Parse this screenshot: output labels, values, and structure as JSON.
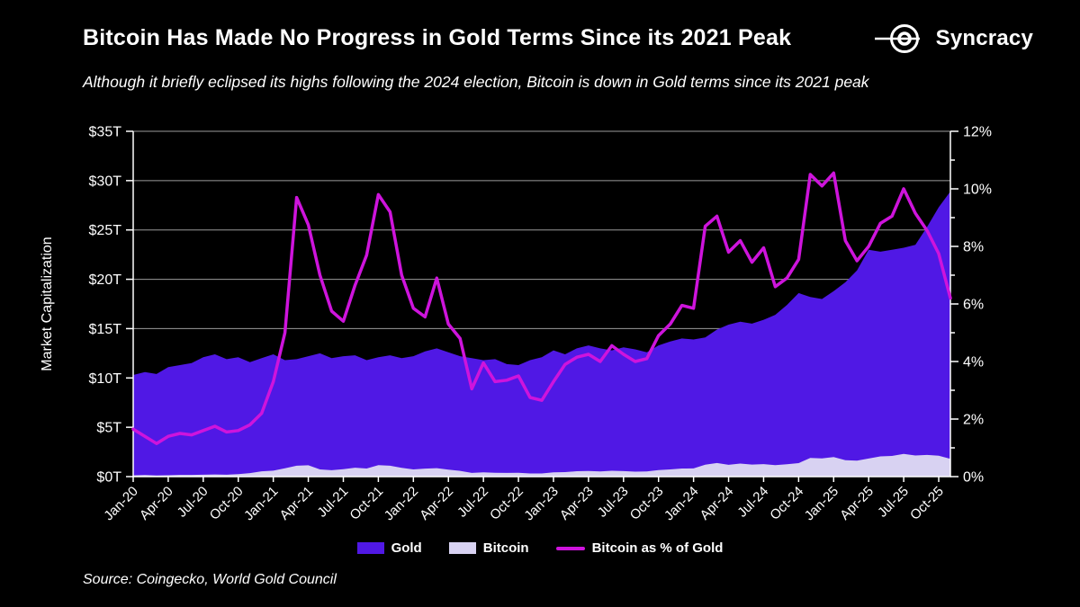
{
  "header": {
    "title": "Bitcoin Has Made No Progress in Gold Terms Since its 2021 Peak",
    "subtitle": "Although it briefly eclipsed its highs following the 2024 election, Bitcoin is down in Gold terms since its 2021 peak",
    "brand": "Syncracy"
  },
  "footer": {
    "source": "Source: Coingecko, World Gold Council"
  },
  "colors": {
    "background": "#000000",
    "gold_area": "#5018E5",
    "bitcoin_area": "#D8D2F2",
    "pct_line": "#CE14DC",
    "gridline": "#9B9B9B",
    "axis": "#FFFFFF",
    "text": "#FFFFFF"
  },
  "legend": {
    "items": [
      {
        "label": "Gold",
        "swatch": "area",
        "color_key": "gold_area"
      },
      {
        "label": "Bitcoin",
        "swatch": "area",
        "color_key": "bitcoin_area"
      },
      {
        "label": "Bitcoin as % of Gold",
        "swatch": "line",
        "color_key": "pct_line"
      }
    ]
  },
  "chart_data": {
    "type": "area",
    "title": "Bitcoin Has Made No Progress in Gold Terms Since its 2021 Peak",
    "x_start": "Jan-20",
    "x_end": "Nov-25",
    "x_frequency": "monthly",
    "x_tick_labels": [
      "Jan-20",
      "Apr-20",
      "Jul-20",
      "Oct-20",
      "Jan-21",
      "Apr-21",
      "Jul-21",
      "Oct-21",
      "Jan-22",
      "Apr-22",
      "Jul-22",
      "Oct-22",
      "Jan-23",
      "Apr-23",
      "Jul-23",
      "Oct-23",
      "Jan-24",
      "Apr-24",
      "Jul-24",
      "Oct-24",
      "Jan-25",
      "Apr-25",
      "Jul-25",
      "Oct-25"
    ],
    "left_axis": {
      "label": "Market Capitalization",
      "tick_labels": [
        "$0T",
        "$5T",
        "$10T",
        "$15T",
        "$20T",
        "$25T",
        "$30T",
        "$35T"
      ],
      "range": [
        0,
        35
      ],
      "unit": "trillion USD"
    },
    "right_axis": {
      "tick_labels": [
        "0%",
        "2%",
        "4%",
        "6%",
        "8%",
        "10%",
        "12%"
      ],
      "range": [
        0,
        12
      ],
      "minor_step": 1
    },
    "grid": "horizontal",
    "legend_position": "bottom",
    "series": [
      {
        "name": "Gold",
        "type": "area",
        "axis": "left",
        "color_key": "gold_area",
        "values": [
          10.3,
          10.6,
          10.4,
          11.1,
          11.3,
          11.5,
          12.1,
          12.4,
          11.9,
          12.1,
          11.6,
          12.0,
          12.4,
          11.8,
          11.9,
          12.2,
          12.5,
          12.0,
          12.2,
          12.3,
          11.8,
          12.1,
          12.3,
          12.0,
          12.2,
          12.7,
          13.0,
          12.6,
          12.2,
          12.0,
          11.8,
          11.9,
          11.4,
          11.3,
          11.8,
          12.1,
          12.8,
          12.4,
          13.0,
          13.3,
          13.0,
          12.8,
          13.1,
          12.9,
          12.6,
          13.3,
          13.7,
          14.0,
          13.9,
          14.1,
          14.9,
          15.4,
          15.7,
          15.5,
          15.9,
          16.4,
          17.4,
          18.6,
          18.2,
          18.0,
          18.8,
          19.7,
          20.9,
          23.0,
          22.8,
          23.0,
          23.2,
          23.5,
          25.3,
          27.3,
          28.9
        ]
      },
      {
        "name": "Bitcoin",
        "type": "area",
        "axis": "left",
        "color_key": "bitcoin_area",
        "values": [
          0.13,
          0.16,
          0.12,
          0.14,
          0.17,
          0.17,
          0.19,
          0.22,
          0.19,
          0.25,
          0.36,
          0.54,
          0.6,
          0.85,
          1.1,
          1.15,
          0.73,
          0.65,
          0.76,
          0.9,
          0.82,
          1.16,
          1.1,
          0.88,
          0.73,
          0.81,
          0.86,
          0.7,
          0.58,
          0.37,
          0.44,
          0.39,
          0.37,
          0.39,
          0.32,
          0.32,
          0.44,
          0.46,
          0.55,
          0.57,
          0.52,
          0.59,
          0.56,
          0.5,
          0.52,
          0.66,
          0.73,
          0.82,
          0.83,
          1.2,
          1.38,
          1.19,
          1.32,
          1.22,
          1.27,
          1.16,
          1.25,
          1.37,
          1.9,
          1.84,
          1.98,
          1.66,
          1.62,
          1.83,
          2.05,
          2.1,
          2.31,
          2.14,
          2.2,
          2.12,
          1.8
        ]
      },
      {
        "name": "Bitcoin as % of Gold",
        "type": "line",
        "axis": "right",
        "color_key": "pct_line",
        "values": [
          1.65,
          1.4,
          1.15,
          1.4,
          1.5,
          1.45,
          1.6,
          1.75,
          1.55,
          1.6,
          1.8,
          2.2,
          3.3,
          5.0,
          9.7,
          8.75,
          7.0,
          5.75,
          5.4,
          6.65,
          7.7,
          9.8,
          9.2,
          7.0,
          5.85,
          5.55,
          6.9,
          5.3,
          4.8,
          3.05,
          3.95,
          3.3,
          3.35,
          3.5,
          2.75,
          2.65,
          3.3,
          3.9,
          4.15,
          4.25,
          4.0,
          4.55,
          4.25,
          4.0,
          4.1,
          4.9,
          5.3,
          5.95,
          5.85,
          8.7,
          9.05,
          7.8,
          8.2,
          7.45,
          7.95,
          6.6,
          6.9,
          7.55,
          10.5,
          10.1,
          10.55,
          8.2,
          7.5,
          8.0,
          8.8,
          9.05,
          10.0,
          9.15,
          8.55,
          7.75,
          6.2
        ]
      }
    ]
  }
}
